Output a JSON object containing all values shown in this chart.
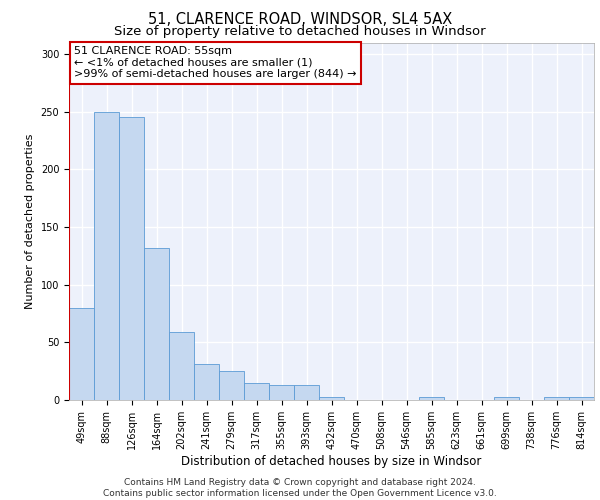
{
  "title": "51, CLARENCE ROAD, WINDSOR, SL4 5AX",
  "subtitle": "Size of property relative to detached houses in Windsor",
  "xlabel": "Distribution of detached houses by size in Windsor",
  "ylabel": "Number of detached properties",
  "categories": [
    "49sqm",
    "88sqm",
    "126sqm",
    "164sqm",
    "202sqm",
    "241sqm",
    "279sqm",
    "317sqm",
    "355sqm",
    "393sqm",
    "432sqm",
    "470sqm",
    "508sqm",
    "546sqm",
    "585sqm",
    "623sqm",
    "661sqm",
    "699sqm",
    "738sqm",
    "776sqm",
    "814sqm"
  ],
  "values": [
    80,
    250,
    245,
    132,
    59,
    31,
    25,
    15,
    13,
    13,
    3,
    0,
    0,
    0,
    3,
    0,
    0,
    3,
    0,
    3,
    3
  ],
  "bar_color": "#c5d8f0",
  "bar_edge_color": "#5b9bd5",
  "highlight_line_color": "#cc0000",
  "annotation_box_text": "51 CLARENCE ROAD: 55sqm\n← <1% of detached houses are smaller (1)\n>99% of semi-detached houses are larger (844) →",
  "annotation_box_color": "white",
  "annotation_box_edge_color": "#cc0000",
  "ylim": [
    0,
    310
  ],
  "yticks": [
    0,
    50,
    100,
    150,
    200,
    250,
    300
  ],
  "bg_color": "#edf1fb",
  "grid_color": "white",
  "footer_text": "Contains HM Land Registry data © Crown copyright and database right 2024.\nContains public sector information licensed under the Open Government Licence v3.0.",
  "title_fontsize": 10.5,
  "subtitle_fontsize": 9.5,
  "xlabel_fontsize": 8.5,
  "ylabel_fontsize": 8.0,
  "tick_fontsize": 7.0,
  "annotation_fontsize": 8.0,
  "footer_fontsize": 6.5
}
